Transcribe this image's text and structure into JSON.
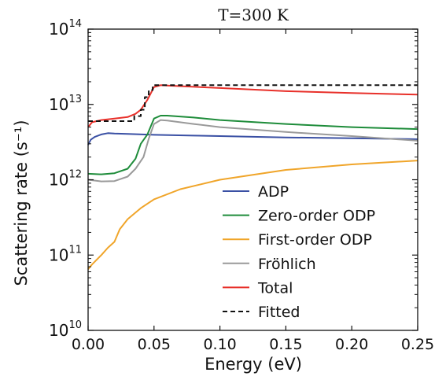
{
  "chart_data": {
    "type": "line",
    "title": "T=300 K",
    "xlabel": "Energy (eV)",
    "ylabel": "Scattering rate (s⁻¹)",
    "x_scale": "linear",
    "y_scale": "log",
    "xlim": [
      0,
      0.25
    ],
    "ylim": [
      10000000000.0,
      100000000000000.0
    ],
    "x_ticks": [
      "0.00",
      "0.05",
      "0.10",
      "0.15",
      "0.20",
      "0.25"
    ],
    "y_ticks": [
      {
        "value": 10000000000.0,
        "base": "10",
        "exp": "10"
      },
      {
        "value": 100000000000.0,
        "base": "10",
        "exp": "11"
      },
      {
        "value": 1000000000000.0,
        "base": "10",
        "exp": "12"
      },
      {
        "value": 10000000000000.0,
        "base": "10",
        "exp": "13"
      },
      {
        "value": 100000000000000.0,
        "base": "10",
        "exp": "14"
      }
    ],
    "grid": false,
    "legend_position": "lower-right",
    "series": [
      {
        "name": "ADP",
        "color": "#3a50a4",
        "dash": false,
        "points": [
          [
            0,
            2900000000000.0
          ],
          [
            0.002,
            3400000000000.0
          ],
          [
            0.005,
            3700000000000.0
          ],
          [
            0.01,
            4000000000000.0
          ],
          [
            0.015,
            4150000000000.0
          ],
          [
            0.02,
            4100000000000.0
          ],
          [
            0.03,
            4050000000000.0
          ],
          [
            0.05,
            3950000000000.0
          ],
          [
            0.08,
            3850000000000.0
          ],
          [
            0.1,
            3800000000000.0
          ],
          [
            0.15,
            3650000000000.0
          ],
          [
            0.2,
            3550000000000.0
          ],
          [
            0.25,
            3450000000000.0
          ]
        ]
      },
      {
        "name": "Zero-order ODP",
        "color": "#1e8c3a",
        "dash": false,
        "points": [
          [
            0,
            1200000000000.0
          ],
          [
            0.01,
            1180000000000.0
          ],
          [
            0.02,
            1220000000000.0
          ],
          [
            0.03,
            1400000000000.0
          ],
          [
            0.036,
            1900000000000.0
          ],
          [
            0.04,
            3000000000000.0
          ],
          [
            0.045,
            4000000000000.0
          ],
          [
            0.05,
            6500000000000.0
          ],
          [
            0.055,
            7100000000000.0
          ],
          [
            0.06,
            7100000000000.0
          ],
          [
            0.08,
            6700000000000.0
          ],
          [
            0.1,
            6200000000000.0
          ],
          [
            0.15,
            5500000000000.0
          ],
          [
            0.2,
            5000000000000.0
          ],
          [
            0.25,
            4700000000000.0
          ]
        ]
      },
      {
        "name": "First-order ODP",
        "color": "#f0a52a",
        "dash": false,
        "points": [
          [
            0,
            65000000000.0
          ],
          [
            0.003,
            75000000000.0
          ],
          [
            0.01,
            100000000000.0
          ],
          [
            0.015,
            125000000000.0
          ],
          [
            0.02,
            150000000000.0
          ],
          [
            0.024,
            220000000000.0
          ],
          [
            0.03,
            300000000000.0
          ],
          [
            0.04,
            420000000000.0
          ],
          [
            0.05,
            550000000000.0
          ],
          [
            0.07,
            750000000000.0
          ],
          [
            0.1,
            1000000000000.0
          ],
          [
            0.15,
            1350000000000.0
          ],
          [
            0.2,
            1600000000000.0
          ],
          [
            0.25,
            1800000000000.0
          ]
        ]
      },
      {
        "name": "Fröhlich",
        "color": "#9a9a9a",
        "dash": false,
        "points": [
          [
            0,
            1000000000000.0
          ],
          [
            0.01,
            950000000000.0
          ],
          [
            0.02,
            960000000000.0
          ],
          [
            0.03,
            1100000000000.0
          ],
          [
            0.036,
            1400000000000.0
          ],
          [
            0.042,
            2000000000000.0
          ],
          [
            0.046,
            3500000000000.0
          ],
          [
            0.05,
            5500000000000.0
          ],
          [
            0.055,
            6200000000000.0
          ],
          [
            0.06,
            6100000000000.0
          ],
          [
            0.08,
            5500000000000.0
          ],
          [
            0.1,
            5000000000000.0
          ],
          [
            0.15,
            4300000000000.0
          ],
          [
            0.2,
            3800000000000.0
          ],
          [
            0.25,
            3300000000000.0
          ]
        ]
      },
      {
        "name": "Total",
        "color": "#e8302a",
        "dash": false,
        "points": [
          [
            0,
            5000000000000.0
          ],
          [
            0.003,
            5800000000000.0
          ],
          [
            0.01,
            6200000000000.0
          ],
          [
            0.02,
            6500000000000.0
          ],
          [
            0.03,
            6800000000000.0
          ],
          [
            0.036,
            7500000000000.0
          ],
          [
            0.04,
            8500000000000.0
          ],
          [
            0.045,
            11500000000000.0
          ],
          [
            0.05,
            17000000000000.0
          ],
          [
            0.055,
            18000000000000.0
          ],
          [
            0.06,
            17800000000000.0
          ],
          [
            0.1,
            16500000000000.0
          ],
          [
            0.15,
            15000000000000.0
          ],
          [
            0.2,
            14200000000000.0
          ],
          [
            0.25,
            13500000000000.0
          ]
        ]
      },
      {
        "name": "Fitted",
        "color": "#111111",
        "dash": true,
        "points": [
          [
            0,
            6000000000000.0
          ],
          [
            0.035,
            6000000000000.0
          ],
          [
            0.035,
            7000000000000.0
          ],
          [
            0.04,
            7000000000000.0
          ],
          [
            0.04,
            8500000000000.0
          ],
          [
            0.043,
            8500000000000.0
          ],
          [
            0.043,
            12500000000000.0
          ],
          [
            0.046,
            12500000000000.0
          ],
          [
            0.046,
            15500000000000.0
          ],
          [
            0.049,
            15500000000000.0
          ],
          [
            0.049,
            18000000000000.0
          ],
          [
            0.25,
            18000000000000.0
          ]
        ]
      }
    ]
  }
}
